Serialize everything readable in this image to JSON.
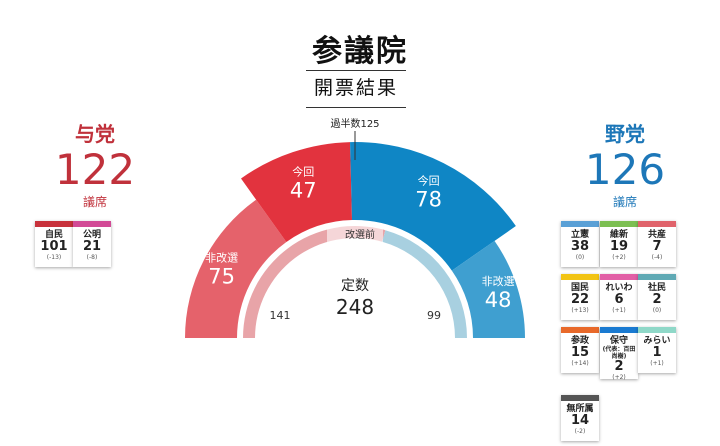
{
  "title": "参議院",
  "subtitle": "開票結果",
  "majority_label": "過半数125",
  "ruling": {
    "name": "与党",
    "seats": "122",
    "unit": "議席"
  },
  "opposition": {
    "name": "野党",
    "seats": "126",
    "unit": "議席"
  },
  "ruling_parties": [
    {
      "name": "自民",
      "seats": "101",
      "change": "(-13)",
      "color": "#c8323c"
    },
    {
      "name": "公明",
      "seats": "21",
      "change": "(-8)",
      "color": "#d24a96"
    }
  ],
  "opposition_parties": [
    {
      "name": "立憲",
      "seats": "38",
      "change": "(0)",
      "color": "#5aa0d6"
    },
    {
      "name": "維新",
      "seats": "19",
      "change": "(+2)",
      "color": "#7cbf52"
    },
    {
      "name": "共産",
      "seats": "7",
      "change": "(-4)",
      "color": "#e0636b"
    },
    {
      "name": "国民",
      "seats": "22",
      "change": "(+13)",
      "color": "#f2c414"
    },
    {
      "name": "れいわ",
      "seats": "6",
      "change": "(+1)",
      "color": "#e25fa6"
    },
    {
      "name": "社民",
      "seats": "2",
      "change": "(0)",
      "color": "#5fa9b4"
    },
    {
      "name": "参政",
      "seats": "15",
      "change": "(+14)",
      "color": "#e8692a"
    },
    {
      "name": "保守",
      "note": "(代表：百田尚樹)",
      "seats": "2",
      "change": "(+2)",
      "color": "#1a7ad1"
    },
    {
      "name": "みらい",
      "seats": "1",
      "change": "(+1)",
      "color": "#8fd8c8"
    },
    {
      "name": "無所属",
      "seats": "14",
      "change": "(-2)",
      "color": "#555555"
    }
  ],
  "chart_data": {
    "type": "pie",
    "segments": [
      {
        "group": "与党",
        "name": "非改選",
        "value": 75,
        "color": "#e5626b"
      },
      {
        "group": "与党",
        "name": "今回",
        "value": 47,
        "color": "#e2333e"
      },
      {
        "group": "野党",
        "name": "今回",
        "value": 78,
        "color": "#0f86c5"
      },
      {
        "group": "野党",
        "name": "非改選",
        "value": 48,
        "color": "#3f9fd0"
      }
    ],
    "inner_ring": {
      "label": "改選前",
      "segments": [
        {
          "value": 141,
          "color": "#e8a4a8",
          "label": "141"
        },
        {
          "value": 99,
          "color": "#a8d0e0",
          "label": "99"
        }
      ]
    },
    "center": {
      "label": "定数",
      "value": "248"
    },
    "majority": 125,
    "total": 248,
    "x_label": "",
    "y_label": ""
  }
}
